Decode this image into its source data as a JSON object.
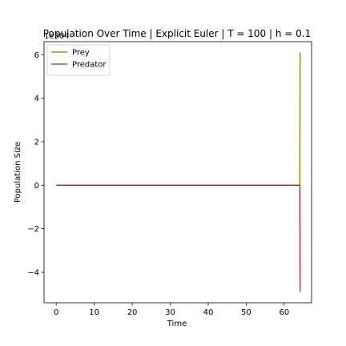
{
  "chart_data": {
    "type": "line",
    "title": "Population Over Time | Explicit Euler | T = 100 | h = 0.1",
    "xlabel": "Time",
    "ylabel": "Population Size",
    "y_offset_label": "1e304",
    "xlim": [
      -3.2,
      67.2
    ],
    "ylim": [
      -5.4,
      6.6
    ],
    "x_ticks": [
      0,
      10,
      20,
      30,
      40,
      50,
      60
    ],
    "y_ticks": [
      -4,
      -2,
      0,
      2,
      4,
      6
    ],
    "legend_position": "upper-left",
    "grid": false,
    "series": [
      {
        "name": "Prey",
        "color": "#808000",
        "x": [
          0,
          64.0,
          64.1,
          64.2
        ],
        "y": [
          0,
          0,
          0.02,
          6.1
        ]
      },
      {
        "name": "Predator",
        "color": "#a52a2a",
        "x": [
          0,
          64.0,
          64.1,
          64.2
        ],
        "y": [
          0,
          0,
          -0.02,
          -4.9
        ]
      }
    ]
  }
}
